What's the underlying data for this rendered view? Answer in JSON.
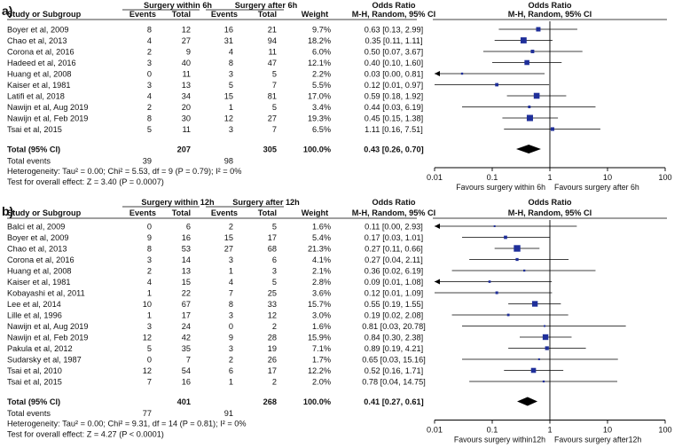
{
  "chart_data": [
    {
      "type": "forest",
      "panel_label": "a)",
      "headers": {
        "study": "Study or Subgroup",
        "group1": "Surgery within 6h",
        "group2": "Surgery after 6h",
        "events": "Events",
        "total": "Total",
        "weight": "Weight",
        "or_title": "Odds Ratio",
        "or_method": "M-H, Random, 95% CI",
        "plot_title": "Odds Ratio",
        "plot_method": "M-H, Random, 95% CI"
      },
      "studies": [
        {
          "name": "Boyer et al, 2009",
          "e1": "8",
          "t1": "12",
          "e2": "16",
          "t2": "21",
          "weight": "9.7%",
          "or_text": "0.63 [0.13, 2.99]",
          "or": 0.63,
          "lo": 0.13,
          "hi": 2.99,
          "w": 9.7
        },
        {
          "name": "Chao et al, 2013",
          "e1": "4",
          "t1": "27",
          "e2": "31",
          "t2": "94",
          "weight": "18.2%",
          "or_text": "0.35 [0.11, 1.11]",
          "or": 0.35,
          "lo": 0.11,
          "hi": 1.11,
          "w": 18.2
        },
        {
          "name": "Corona et al, 2016",
          "e1": "2",
          "t1": "9",
          "e2": "4",
          "t2": "11",
          "weight": "6.0%",
          "or_text": "0.50 [0.07, 3.67]",
          "or": 0.5,
          "lo": 0.07,
          "hi": 3.67,
          "w": 6.0
        },
        {
          "name": "Hadeed et al, 2016",
          "e1": "3",
          "t1": "40",
          "e2": "8",
          "t2": "47",
          "weight": "12.1%",
          "or_text": "0.40 [0.10, 1.60]",
          "or": 0.4,
          "lo": 0.1,
          "hi": 1.6,
          "w": 12.1
        },
        {
          "name": "Huang et al, 2008",
          "e1": "0",
          "t1": "11",
          "e2": "3",
          "t2": "5",
          "weight": "2.2%",
          "or_text": "0.03 [0.00, 0.81]",
          "or": 0.03,
          "lo": 0.001,
          "hi": 0.81,
          "w": 2.2
        },
        {
          "name": "Kaiser et al, 1981",
          "e1": "3",
          "t1": "13",
          "e2": "5",
          "t2": "7",
          "weight": "5.5%",
          "or_text": "0.12 [0.01, 0.97]",
          "or": 0.12,
          "lo": 0.01,
          "hi": 0.97,
          "w": 5.5
        },
        {
          "name": "Latifi et al, 2018",
          "e1": "4",
          "t1": "34",
          "e2": "15",
          "t2": "81",
          "weight": "17.0%",
          "or_text": "0.59 [0.18, 1.92]",
          "or": 0.59,
          "lo": 0.18,
          "hi": 1.92,
          "w": 17.0
        },
        {
          "name": "Nawijn et al, Aug 2019",
          "e1": "2",
          "t1": "20",
          "e2": "1",
          "t2": "5",
          "weight": "3.4%",
          "or_text": "0.44 [0.03, 6.19]",
          "or": 0.44,
          "lo": 0.03,
          "hi": 6.19,
          "w": 3.4
        },
        {
          "name": "Nawijn et al, Feb 2019",
          "e1": "8",
          "t1": "30",
          "e2": "12",
          "t2": "27",
          "weight": "19.3%",
          "or_text": "0.45 [0.15, 1.38]",
          "or": 0.45,
          "lo": 0.15,
          "hi": 1.38,
          "w": 19.3
        },
        {
          "name": "Tsai et al, 2015",
          "e1": "5",
          "t1": "11",
          "e2": "3",
          "t2": "7",
          "weight": "6.5%",
          "or_text": "1.11 [0.16, 7.51]",
          "or": 1.11,
          "lo": 0.16,
          "hi": 7.51,
          "w": 6.5
        }
      ],
      "total": {
        "label": "Total (95% CI)",
        "t1": "207",
        "t2": "305",
        "weight": "100.0%",
        "or_text": "0.43 [0.26, 0.70]",
        "or": 0.43,
        "lo": 0.26,
        "hi": 0.7
      },
      "total_events": {
        "label": "Total events",
        "e1": "39",
        "e2": "98"
      },
      "heterogeneity": "Heterogeneity: Tau² = 0.00; Chi² = 5.53, df = 9 (P = 0.79); I² = 0%",
      "overall_effect": "Test for overall effect: Z = 3.40 (P = 0.0007)",
      "x_scale": "log",
      "xlim": [
        0.01,
        100
      ],
      "ticks": [
        {
          "value": 0.01,
          "label": "0.01"
        },
        {
          "value": 0.1,
          "label": "0.1"
        },
        {
          "value": 1,
          "label": "1"
        },
        {
          "value": 10,
          "label": "10"
        },
        {
          "value": 100,
          "label": "100"
        }
      ],
      "favours_left": "Favours surgery within 6h",
      "favours_right": "Favours surgery after 6h"
    },
    {
      "type": "forest",
      "panel_label": "b)",
      "headers": {
        "study": "Study or Subgroup",
        "group1": "Surgery within 12h",
        "group2": "Surgery after 12h",
        "events": "Events",
        "total": "Total",
        "weight": "Weight",
        "or_title": "Odds Ratio",
        "or_method": "M-H, Random, 95% CI",
        "plot_title": "Odds Ratio",
        "plot_method": "M-H, Random, 95% CI"
      },
      "studies": [
        {
          "name": "Balci et al, 2009",
          "e1": "0",
          "t1": "6",
          "e2": "2",
          "t2": "5",
          "weight": "1.6%",
          "or_text": "0.11 [0.00, 2.93]",
          "or": 0.11,
          "lo": 0.004,
          "hi": 2.93,
          "w": 1.6
        },
        {
          "name": "Boyer et al, 2009",
          "e1": "9",
          "t1": "16",
          "e2": "15",
          "t2": "17",
          "weight": "5.4%",
          "or_text": "0.17 [0.03, 1.01]",
          "or": 0.17,
          "lo": 0.03,
          "hi": 1.01,
          "w": 5.4
        },
        {
          "name": "Chao et al, 2013",
          "e1": "8",
          "t1": "53",
          "e2": "27",
          "t2": "68",
          "weight": "21.3%",
          "or_text": "0.27 [0.11, 0.66]",
          "or": 0.27,
          "lo": 0.11,
          "hi": 0.66,
          "w": 21.3
        },
        {
          "name": "Corona et al, 2016",
          "e1": "3",
          "t1": "14",
          "e2": "3",
          "t2": "6",
          "weight": "4.1%",
          "or_text": "0.27 [0.04, 2.11]",
          "or": 0.27,
          "lo": 0.04,
          "hi": 2.11,
          "w": 4.1
        },
        {
          "name": "Huang et al, 2008",
          "e1": "2",
          "t1": "13",
          "e2": "1",
          "t2": "3",
          "weight": "2.1%",
          "or_text": "0.36 [0.02, 6.19]",
          "or": 0.36,
          "lo": 0.02,
          "hi": 6.19,
          "w": 2.1
        },
        {
          "name": "Kaiser et al, 1981",
          "e1": "4",
          "t1": "15",
          "e2": "4",
          "t2": "5",
          "weight": "2.8%",
          "or_text": "0.09 [0.01, 1.08]",
          "or": 0.09,
          "lo": 0.007,
          "hi": 1.08,
          "w": 2.8
        },
        {
          "name": "Kobayashi et al, 2011",
          "e1": "1",
          "t1": "22",
          "e2": "7",
          "t2": "25",
          "weight": "3.6%",
          "or_text": "0.12 [0.01, 1.09]",
          "or": 0.12,
          "lo": 0.01,
          "hi": 1.09,
          "w": 3.6
        },
        {
          "name": "Lee et al, 2014",
          "e1": "10",
          "t1": "67",
          "e2": "8",
          "t2": "33",
          "weight": "15.7%",
          "or_text": "0.55 [0.19, 1.55]",
          "or": 0.55,
          "lo": 0.19,
          "hi": 1.55,
          "w": 15.7
        },
        {
          "name": "Lille et al, 1996",
          "e1": "1",
          "t1": "17",
          "e2": "3",
          "t2": "12",
          "weight": "3.0%",
          "or_text": "0.19 [0.02, 2.08]",
          "or": 0.19,
          "lo": 0.02,
          "hi": 2.08,
          "w": 3.0
        },
        {
          "name": "Nawijn et al, Aug 2019",
          "e1": "3",
          "t1": "24",
          "e2": "0",
          "t2": "2",
          "weight": "1.6%",
          "or_text": "0.81 [0.03, 20.78]",
          "or": 0.81,
          "lo": 0.03,
          "hi": 20.78,
          "w": 1.6
        },
        {
          "name": "Nawijn et al, Feb 2019",
          "e1": "12",
          "t1": "42",
          "e2": "9",
          "t2": "28",
          "weight": "15.9%",
          "or_text": "0.84 [0.30, 2.38]",
          "or": 0.84,
          "lo": 0.3,
          "hi": 2.38,
          "w": 15.9
        },
        {
          "name": "Pakula et al, 2012",
          "e1": "5",
          "t1": "35",
          "e2": "3",
          "t2": "19",
          "weight": "7.1%",
          "or_text": "0.89 [0.19, 4.21]",
          "or": 0.89,
          "lo": 0.19,
          "hi": 4.21,
          "w": 7.1
        },
        {
          "name": "Sudarsky et al, 1987",
          "e1": "0",
          "t1": "7",
          "e2": "2",
          "t2": "26",
          "weight": "1.7%",
          "or_text": "0.65 [0.03, 15.16]",
          "or": 0.65,
          "lo": 0.03,
          "hi": 15.16,
          "w": 1.7
        },
        {
          "name": "Tsai et al, 2010",
          "e1": "12",
          "t1": "54",
          "e2": "6",
          "t2": "17",
          "weight": "12.2%",
          "or_text": "0.52 [0.16, 1.71]",
          "or": 0.52,
          "lo": 0.16,
          "hi": 1.71,
          "w": 12.2
        },
        {
          "name": "Tsai et al, 2015",
          "e1": "7",
          "t1": "16",
          "e2": "1",
          "t2": "2",
          "weight": "2.0%",
          "or_text": "0.78 [0.04, 14.75]",
          "or": 0.78,
          "lo": 0.04,
          "hi": 14.75,
          "w": 2.0
        }
      ],
      "total": {
        "label": "Total (95% CI)",
        "t1": "401",
        "t2": "268",
        "weight": "100.0%",
        "or_text": "0.41 [0.27, 0.61]",
        "or": 0.41,
        "lo": 0.27,
        "hi": 0.61
      },
      "total_events": {
        "label": "Total events",
        "e1": "77",
        "e2": "91"
      },
      "heterogeneity": "Heterogeneity: Tau² = 0.00; Chi² = 9.31, df = 14 (P = 0.81); I² = 0%",
      "overall_effect": "Test for overall effect: Z = 4.27 (P < 0.0001)",
      "x_scale": "log",
      "xlim": [
        0.01,
        100
      ],
      "ticks": [
        {
          "value": 0.01,
          "label": "0.01"
        },
        {
          "value": 0.1,
          "label": "0.1"
        },
        {
          "value": 1,
          "label": "1"
        },
        {
          "value": 10,
          "label": "10"
        },
        {
          "value": 100,
          "label": "100"
        }
      ],
      "favours_left": "Favours surgery within12h",
      "favours_right": "Favours surgery after12h"
    }
  ],
  "colors": {
    "square": "#1f2f9a",
    "diamond": "#000000",
    "line": "#000000",
    "text": "#111111"
  }
}
